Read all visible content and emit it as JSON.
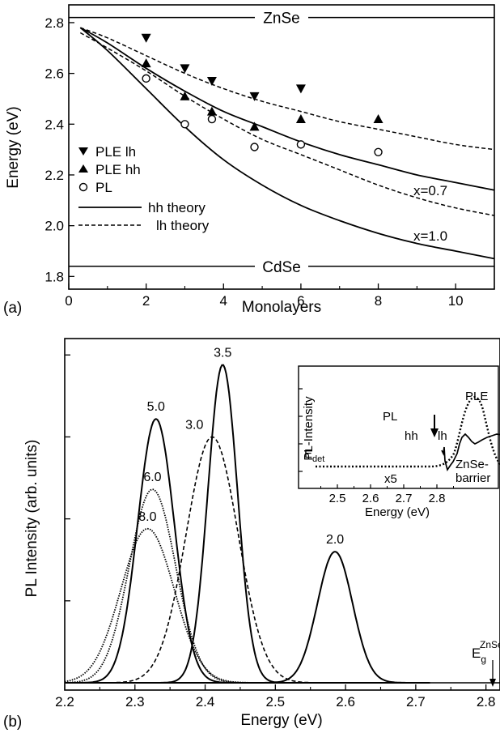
{
  "chart_data": [
    {
      "panel": "(a)",
      "type": "scatter",
      "xlabel": "Monolayers",
      "ylabel": "Energy (eV)",
      "xlim": [
        0,
        11
      ],
      "ylim": [
        1.75,
        2.87
      ],
      "xticks": [
        0,
        2,
        4,
        6,
        8,
        10
      ],
      "yticks": [
        1.8,
        2.0,
        2.2,
        2.4,
        2.6,
        2.8
      ],
      "reference_lines": [
        {
          "label": "ZnSe",
          "y": 2.82
        },
        {
          "label": "CdSe",
          "y": 1.84
        }
      ],
      "series": [
        {
          "name": "PLE lh",
          "marker": "triangle-down-filled",
          "x": [
            2,
            3,
            3.7,
            4.8,
            6,
            8
          ],
          "y": [
            2.74,
            2.62,
            2.57,
            2.51,
            2.54,
            null
          ]
        },
        {
          "name": "PLE hh",
          "marker": "triangle-up-filled",
          "x": [
            2,
            3,
            3.7,
            4.8,
            6,
            8
          ],
          "y": [
            2.64,
            2.51,
            2.45,
            2.39,
            2.42,
            2.42
          ]
        },
        {
          "name": "PL",
          "marker": "circle-open",
          "x": [
            2,
            3,
            3.7,
            4.8,
            6,
            8
          ],
          "y": [
            2.58,
            2.4,
            2.42,
            2.31,
            2.32,
            2.29
          ]
        }
      ],
      "theory_curves": [
        {
          "legend": "hh theory",
          "style": "solid",
          "label": "x=0.7",
          "x": [
            0.3,
            1,
            2,
            3,
            4,
            5,
            6,
            7,
            8,
            9,
            10,
            11
          ],
          "y": [
            2.78,
            2.72,
            2.62,
            2.53,
            2.45,
            2.39,
            2.33,
            2.28,
            2.24,
            2.2,
            2.17,
            2.14
          ]
        },
        {
          "legend": "lh theory",
          "style": "dashed",
          "label": "",
          "x": [
            0.3,
            1,
            2,
            3,
            4,
            5,
            6,
            7,
            8,
            9,
            10,
            11
          ],
          "y": [
            2.78,
            2.74,
            2.67,
            2.6,
            2.54,
            2.49,
            2.45,
            2.41,
            2.38,
            2.35,
            2.32,
            2.3
          ]
        },
        {
          "legend": "hh theory",
          "style": "solid",
          "label": "x=1.0",
          "x": [
            0.3,
            1,
            2,
            3,
            4,
            5,
            6,
            7,
            8,
            9,
            10,
            11
          ],
          "y": [
            2.78,
            2.69,
            2.54,
            2.39,
            2.26,
            2.16,
            2.08,
            2.02,
            1.97,
            1.93,
            1.9,
            1.87
          ]
        },
        {
          "legend": "lh theory",
          "style": "dashed",
          "label": "",
          "x": [
            0.3,
            1,
            2,
            3,
            4,
            5,
            6,
            7,
            8,
            9,
            10,
            11
          ],
          "y": [
            2.76,
            2.7,
            2.61,
            2.51,
            2.42,
            2.34,
            2.28,
            2.22,
            2.16,
            2.11,
            2.07,
            2.04
          ]
        }
      ],
      "legend": [
        "PLE lh",
        "PLE hh",
        "PL",
        "hh theory",
        "lh theory"
      ],
      "annotations": [
        "x=0.7",
        "x=1.0"
      ]
    },
    {
      "panel": "(b)",
      "type": "line",
      "xlabel": "Energy (eV)",
      "ylabel": "PL Intensity (arb. units)",
      "xlim": [
        2.2,
        2.82
      ],
      "xticks": [
        2.2,
        2.3,
        2.4,
        2.5,
        2.6,
        2.7,
        2.8
      ],
      "ylim": [
        0,
        1.05
      ],
      "series": [
        {
          "name": "5.0",
          "style": "solid",
          "center": 2.33,
          "peak": 0.805,
          "sigma": 0.026
        },
        {
          "name": "6.0",
          "style": "dotted",
          "center": 2.325,
          "peak": 0.59,
          "sigma": 0.033
        },
        {
          "name": "8.0",
          "style": "dotted",
          "center": 2.318,
          "peak": 0.47,
          "sigma": 0.038
        },
        {
          "name": "3.0",
          "style": "dashed",
          "center": 2.41,
          "peak": 0.75,
          "sigma": 0.037
        },
        {
          "name": "3.5",
          "style": "solid",
          "center": 2.425,
          "peak": 0.97,
          "sigma": 0.021
        },
        {
          "name": "2.0",
          "style": "solid",
          "center": 2.585,
          "peak": 0.4,
          "sigma": 0.025
        }
      ],
      "marker": {
        "label": "E",
        "sub": "g",
        "sup": "ZnSe",
        "x": 2.81
      },
      "inset": {
        "xlabel": "Energy (eV)",
        "ylabel": "PL-Intensity",
        "xticks": [
          2.5,
          2.6,
          2.7,
          2.8
        ],
        "labels": {
          "pl": "PL",
          "ple": "PLE",
          "hh": "hh",
          "lh": "lh",
          "x5": "x5",
          "barrier_1": "ZnSe-",
          "barrier_2": "barrier",
          "edet": "E",
          "edet_sub": "det"
        }
      }
    }
  ],
  "panel_labels": {
    "a": "(a)",
    "b": "(b)"
  }
}
